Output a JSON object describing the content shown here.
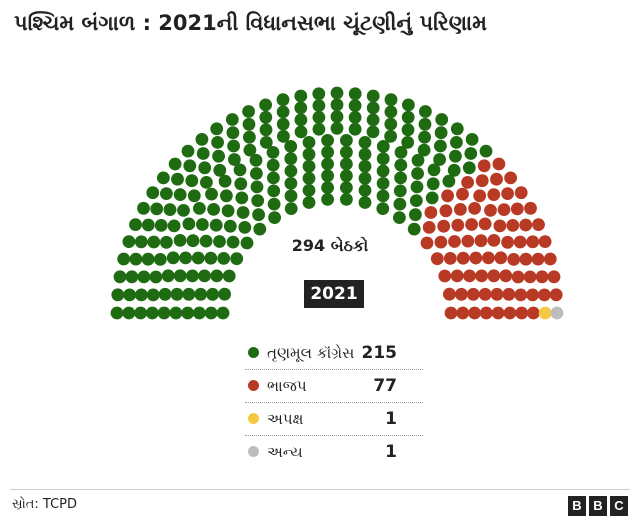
{
  "title": "પશ્ચિમ બંગાળ : 2021ની વિધાનસભા ચૂંટણીનું પરિણામ",
  "chart_data": {
    "type": "parliament",
    "total_seats": 294,
    "total_label": "294 બેઠકો",
    "year": "2021",
    "parties": [
      {
        "name": "તૃણમૂલ કૉંગ્રેસ",
        "seats": 215,
        "color": "#1f6b12"
      },
      {
        "name": "ભાજપ",
        "seats": 77,
        "color": "#b83a25"
      },
      {
        "name": "અપક્ષ",
        "seats": 1,
        "color": "#f5c842"
      },
      {
        "name": "અન્ય",
        "seats": 1,
        "color": "#bdbdbd"
      }
    ]
  },
  "footer": {
    "source": "સ્રોત: TCPD",
    "logo": [
      "B",
      "B",
      "C"
    ]
  }
}
